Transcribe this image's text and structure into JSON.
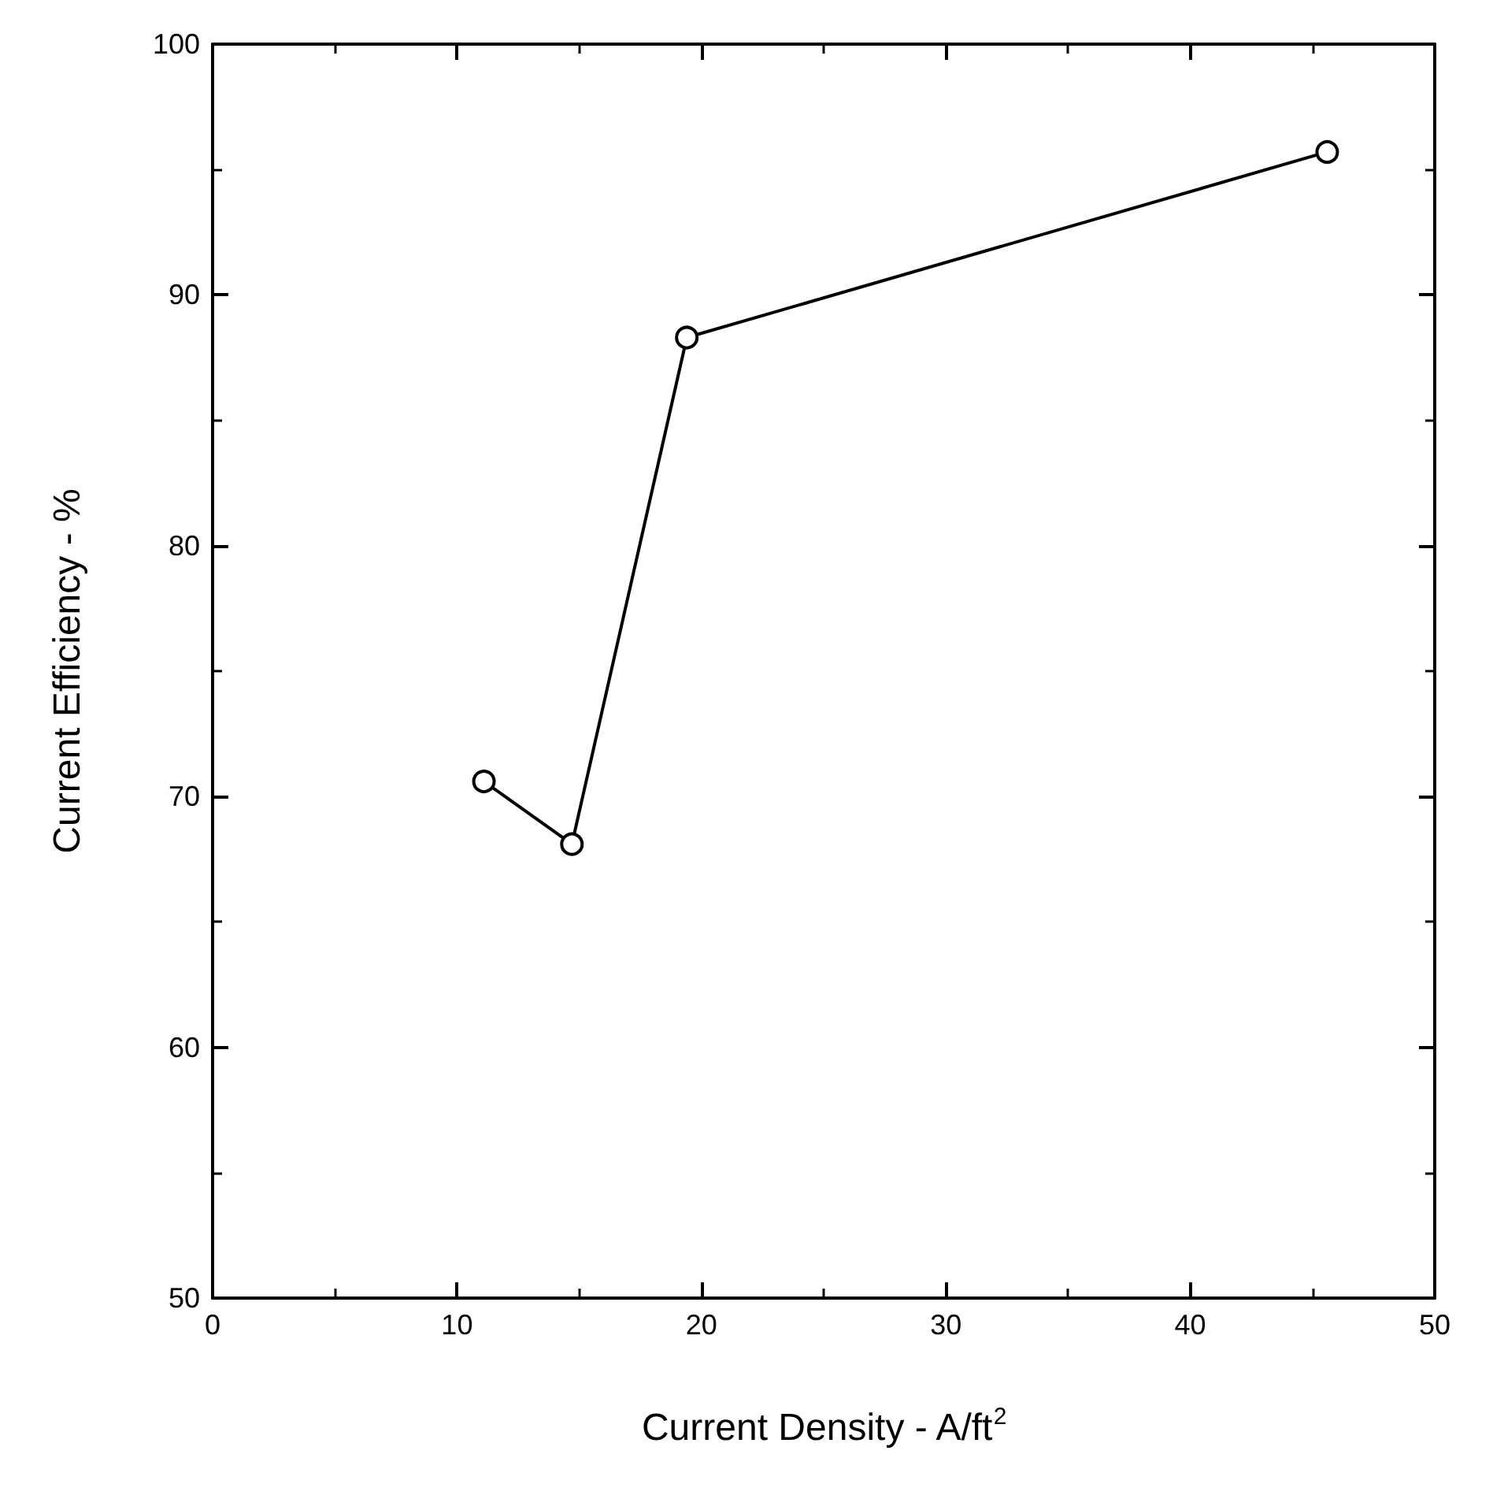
{
  "chart_data": {
    "type": "line",
    "xlabel": "Current Density - A/ft$^{2}$",
    "ylabel": "Current Efficiency - %",
    "x": [
      11.1,
      14.7,
      19.4,
      45.6
    ],
    "series": [
      {
        "color": "#000000",
        "values": [
          70.6,
          68.1,
          88.3,
          95.7
        ]
      }
    ],
    "xlim": [
      0,
      50
    ],
    "xticks": [
      0,
      10,
      20,
      30,
      40,
      50
    ],
    "ylim": [
      50,
      100
    ],
    "yticks": [
      50,
      60,
      70,
      80,
      90,
      100
    ],
    "marker": "circle",
    "line_style": "solid",
    "grid": false
  }
}
